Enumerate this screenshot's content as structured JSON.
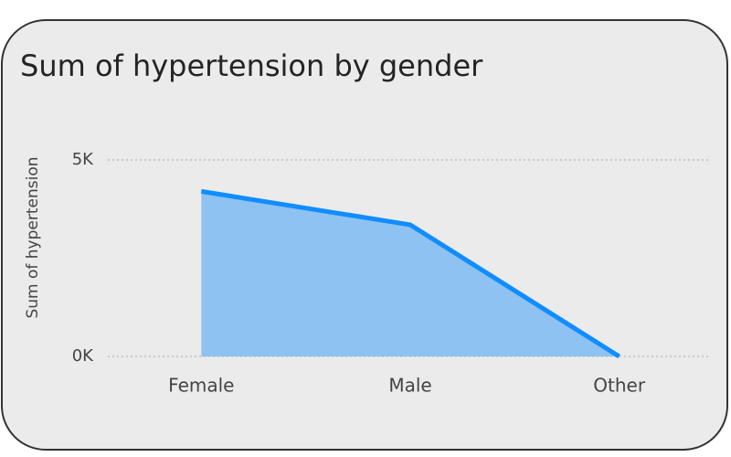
{
  "chart_data": {
    "type": "area",
    "title": "Sum of hypertension by gender",
    "y_label": "Sum of hypertension",
    "categories": [
      "Female",
      "Male",
      "Other"
    ],
    "values": [
      4200,
      3350,
      0
    ],
    "color": "#118dff",
    "fill": "#8ec2f2",
    "ylim": [
      0,
      5000
    ],
    "yticks": [
      {
        "value": 0,
        "label": "0K"
      },
      {
        "value": 5000,
        "label": "5K"
      }
    ],
    "grid": true
  }
}
